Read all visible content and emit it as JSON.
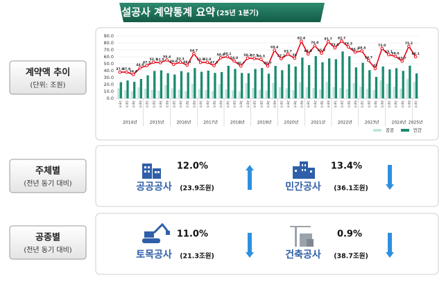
{
  "header": {
    "title": "건설공사 계약통계 요약",
    "subtitle": "(25년 1분기)"
  },
  "sections": [
    {
      "label": "계약액 추이",
      "sublabel": "(단위: 조원)"
    },
    {
      "label": "주체별",
      "sublabel": "(전년 동기 대비)",
      "items": [
        {
          "name": "공공공사",
          "change": "12.0%",
          "amount": "(23.9조원)",
          "direction": "up"
        },
        {
          "name": "민간공사",
          "change": "13.4%",
          "amount": "(36.1조원)",
          "direction": "down"
        }
      ]
    },
    {
      "label": "공종별",
      "sublabel": "(전년 동기 대비)",
      "items": [
        {
          "name": "토목공사",
          "change": "11.0%",
          "amount": "(21.3조원)",
          "direction": "down"
        },
        {
          "name": "건축공사",
          "change": "0.9%",
          "amount": "(38.7조원)",
          "direction": "down"
        }
      ]
    }
  ],
  "chart_data": {
    "type": "bar-line",
    "categories": [
      "1분기",
      "2분기",
      "3분기",
      "4분기",
      "1분기",
      "2분기",
      "3분기",
      "4분기",
      "1분기",
      "2분기",
      "3분기",
      "4분기",
      "1분기",
      "2분기",
      "3분기",
      "4분기",
      "1분기",
      "2분기",
      "3분기",
      "4분기",
      "1분기",
      "2분기",
      "3분기",
      "4분기",
      "1분기",
      "2분기",
      "3분기",
      "4분기",
      "1분기",
      "2분기",
      "3분기",
      "4분기",
      "1분기",
      "2분기",
      "3분기",
      "4분기",
      "1분기",
      "2분기",
      "3분기",
      "4분기",
      "1분기",
      "2분기",
      "3분기",
      "4분기",
      "1분기"
    ],
    "year_labels": [
      "2014년",
      "2015년",
      "2016년",
      "2017년",
      "2018년",
      "2019년",
      "2020년",
      "2021년",
      "2022년",
      "2023년",
      "2024년",
      "2025년"
    ],
    "series": [
      {
        "name": "공공",
        "color": "#bfe6dc",
        "values": [
          14.5,
          12.0,
          10.5,
          16.0,
          14.0,
          12.5,
          11.0,
          19.0,
          14.5,
          13.0,
          10.5,
          21.0,
          13.5,
          12.0,
          10.5,
          20.5,
          13.0,
          11.5,
          10.0,
          22.0,
          15.0,
          12.5,
          11.0,
          22.5,
          16.5,
          14.5,
          12.0,
          23.5,
          16.0,
          15.0,
          13.0,
          24.0,
          16.5,
          15.0,
          13.5,
          22.0,
          17.0,
          14.0,
          12.0,
          26.0,
          21.3,
          17.0,
          14.0,
          28.0,
          23.9
        ]
      },
      {
        "name": "민간",
        "color": "#1b8a70",
        "values": [
          23.4,
          25.9,
          23.9,
          28.0,
          33.3,
          39.6,
          40.5,
          36.4,
          34.5,
          39.3,
          37.5,
          43.7,
          38.4,
          40.0,
          36.8,
          38.1,
          47.1,
          42.5,
          36.7,
          36.2,
          42.5,
          43.8,
          35.7,
          46.9,
          40.7,
          49.2,
          46.0,
          58.9,
          48.0,
          61.0,
          52.2,
          57.7,
          56.5,
          67.7,
          60.8,
          44.7,
          51.4,
          40.7,
          31.0,
          46.0,
          41.8,
          43.6,
          39.7,
          47.2,
          36.1
        ]
      }
    ],
    "total": {
      "color": "#e60012",
      "values": [
        37.9,
        37.9,
        34.4,
        44.0,
        47.3,
        52.1,
        51.5,
        55.4,
        49.0,
        52.3,
        48.0,
        64.7,
        51.9,
        52.0,
        47.3,
        58.6,
        60.1,
        54.0,
        46.7,
        58.2,
        57.5,
        56.3,
        46.7,
        69.4,
        57.2,
        63.7,
        58.0,
        82.4,
        64.0,
        76.0,
        65.2,
        81.7,
        73.0,
        82.7,
        74.3,
        66.7,
        68.4,
        54.7,
        43.0,
        72.0,
        63.1,
        60.6,
        53.7,
        75.2,
        60.1
      ],
      "value_labels": [
        "37.9",
        "37.9",
        "34.4",
        "44.0",
        "47.3",
        "52.1",
        "51.5",
        "55.4",
        "49.0",
        "52.3",
        "48.0",
        "64.7",
        "51.9",
        "52.0",
        "47.3",
        "58.6",
        "60.1",
        "54.0",
        "46.7",
        "58.2",
        "57.5",
        "56.3",
        "46.7",
        "69.4",
        "57.2",
        "63.7",
        "58",
        "82.4",
        "64.0",
        "76.0",
        "65.2",
        "81.7",
        "73.0",
        "82.7",
        "74.3",
        "66.7",
        "68.4",
        "54.7",
        "43",
        "72.0",
        "63.1",
        "60.6",
        "53.7",
        "75.2",
        "60.1"
      ]
    },
    "ylim": [
      0,
      90
    ],
    "yticks": [
      {
        "value": 0,
        "label": "0.0"
      },
      {
        "value": 10,
        "label": "10.0"
      },
      {
        "value": 20,
        "label": "20.0"
      },
      {
        "value": 30,
        "label": "30.0"
      },
      {
        "value": 40,
        "label": "40.0"
      },
      {
        "value": 50,
        "label": "50.0"
      },
      {
        "value": 60,
        "label": "60.0"
      },
      {
        "value": 70,
        "label": "70.0"
      },
      {
        "value": 80,
        "label": "80.0"
      },
      {
        "value": 90,
        "label": "90.0"
      }
    ],
    "grid": true
  }
}
